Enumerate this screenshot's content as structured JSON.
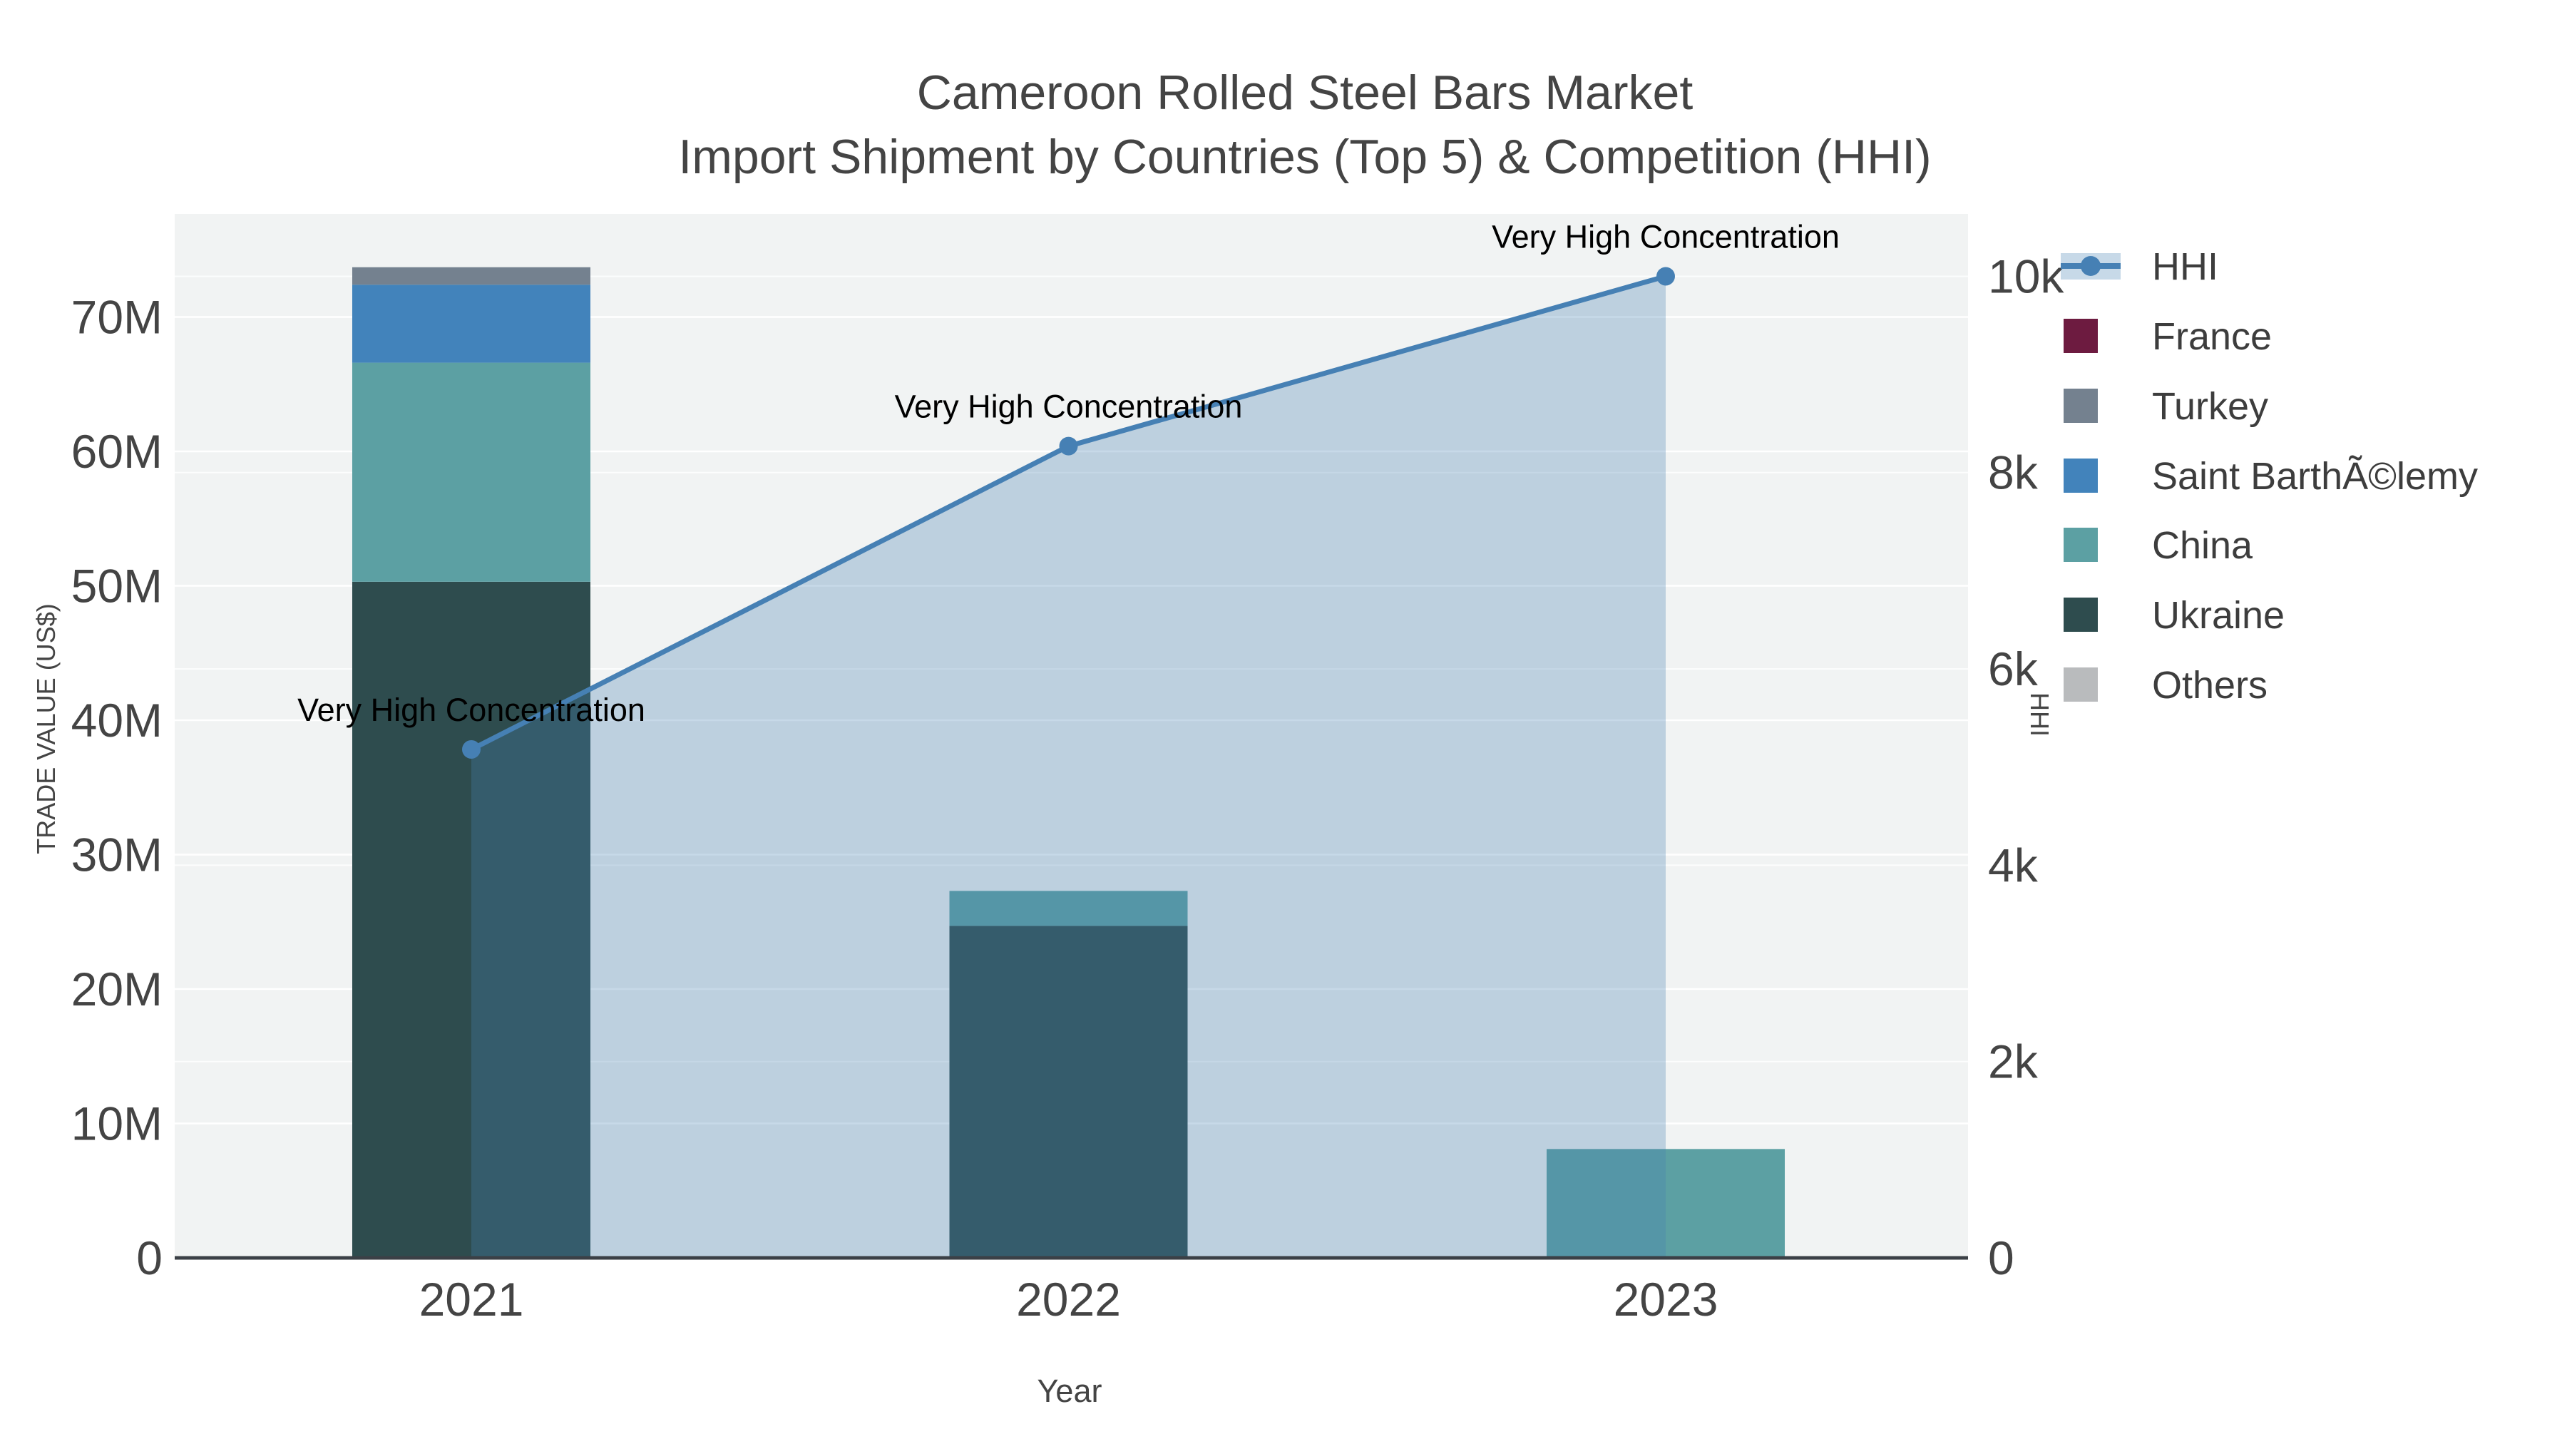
{
  "chart_data": {
    "type": "bar",
    "subtype": "stacked-bar-with-line-area-combo",
    "title": {
      "line1": "Cameroon Rolled Steel Bars Market",
      "line2": "Import Shipment by Countries (Top 5) & Competition (HHI)"
    },
    "x": {
      "label": "Year",
      "categories": [
        "2021",
        "2022",
        "2023"
      ],
      "years": [
        2021,
        2022,
        2023
      ]
    },
    "y_left": {
      "label": "TRADE VALUE (US$)",
      "tick_labels": [
        "0",
        "10M",
        "20M",
        "30M",
        "40M",
        "50M",
        "60M",
        "70M"
      ],
      "tick_values_musd": [
        0,
        10,
        20,
        30,
        40,
        50,
        60,
        70
      ],
      "range_max_musd": 77.7,
      "grid": true
    },
    "y_right": {
      "label": "HHI",
      "tick_labels": [
        "0",
        "2k",
        "4k",
        "6k",
        "8k",
        "10k"
      ],
      "tick_values": [
        0,
        2000,
        4000,
        6000,
        8000,
        10000
      ],
      "range_max": 10640,
      "grid": true
    },
    "series": [
      {
        "name": "Ukraine",
        "color": "#2e4c4e",
        "values_musd": [
          50.3,
          24.7,
          0
        ]
      },
      {
        "name": "China",
        "color": "#5ca0a3",
        "values_musd": [
          16.3,
          2.6,
          8.1
        ]
      },
      {
        "name": "Saint BarthÃ©lemy",
        "color": "#4283bb",
        "values_musd": [
          5.8,
          0,
          0
        ]
      },
      {
        "name": "Turkey",
        "color": "#74818f",
        "values_musd": [
          1.3,
          0,
          0
        ]
      },
      {
        "name": "France",
        "color": "#6d1b40",
        "values_musd": [
          0,
          0,
          0
        ]
      },
      {
        "name": "Others",
        "color": "#b9bbbd",
        "values_musd": [
          0,
          0,
          0
        ]
      }
    ],
    "hhi": {
      "name": "HHI",
      "line_color": "#4680b4",
      "fill_color": "rgba(70,128,180,0.30)",
      "values": [
        5180,
        8270,
        10000
      ]
    },
    "annotations": [
      {
        "text": "Very High Concentration",
        "year": 2021
      },
      {
        "text": "Very High Concentration",
        "year": 2022
      },
      {
        "text": "Very High Concentration",
        "year": 2023
      }
    ],
    "legend": [
      {
        "label": "HHI",
        "color": "#4680b4",
        "kind": "line-marker-band"
      },
      {
        "label": "France",
        "color": "#6d1b40",
        "kind": "swatch"
      },
      {
        "label": "Turkey",
        "color": "#74818f",
        "kind": "swatch"
      },
      {
        "label": "Saint BarthÃ©lemy",
        "color": "#4283bb",
        "kind": "swatch"
      },
      {
        "label": "China",
        "color": "#5ca0a3",
        "kind": "swatch"
      },
      {
        "label": "Ukraine",
        "color": "#2e4c4e",
        "kind": "swatch"
      },
      {
        "label": "Others",
        "color": "#b9bbbd",
        "kind": "swatch"
      }
    ],
    "style": {
      "plot_bg": "#f1f3f3",
      "grid_color": "#ffffff",
      "axis_line_color": "#3b4046",
      "text_color": "#444444",
      "annotation_color": "#000000"
    }
  }
}
